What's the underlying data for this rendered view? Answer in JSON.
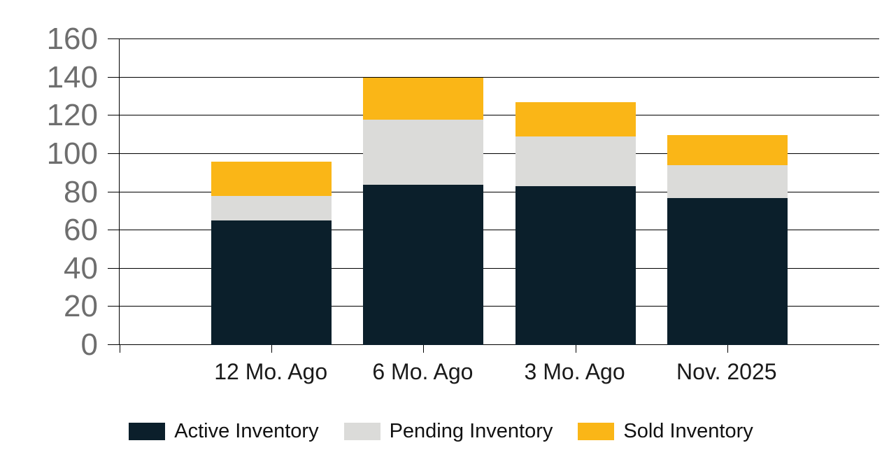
{
  "chart_data": {
    "type": "bar",
    "stacked": true,
    "title": "",
    "xlabel": "",
    "ylabel": "",
    "categories": [
      "12 Mo. Ago",
      "6 Mo. Ago",
      "3 Mo. Ago",
      "Nov. 2025"
    ],
    "series": [
      {
        "name": "Active Inventory",
        "color": "#0b1f2b",
        "values": [
          65,
          84,
          83,
          77
        ]
      },
      {
        "name": "Pending Inventory",
        "color": "#dbdbd9",
        "values": [
          13,
          34,
          26,
          17
        ]
      },
      {
        "name": "Sold Inventory",
        "color": "#fab617",
        "values": [
          18,
          22,
          18,
          16
        ]
      }
    ],
    "stack_totals": [
      96,
      140,
      127,
      110
    ],
    "ylim": [
      0,
      160
    ],
    "yticks": [
      0,
      20,
      40,
      60,
      80,
      100,
      120,
      140,
      160
    ],
    "grid": true,
    "legend_position": "bottom"
  },
  "colors": {
    "background": "#ffffff",
    "gridline": "#000000",
    "axis": "#000000",
    "y_tick_label": "#6e6e6e",
    "x_tick_label": "#1a1a1a",
    "legend_text": "#111111"
  }
}
